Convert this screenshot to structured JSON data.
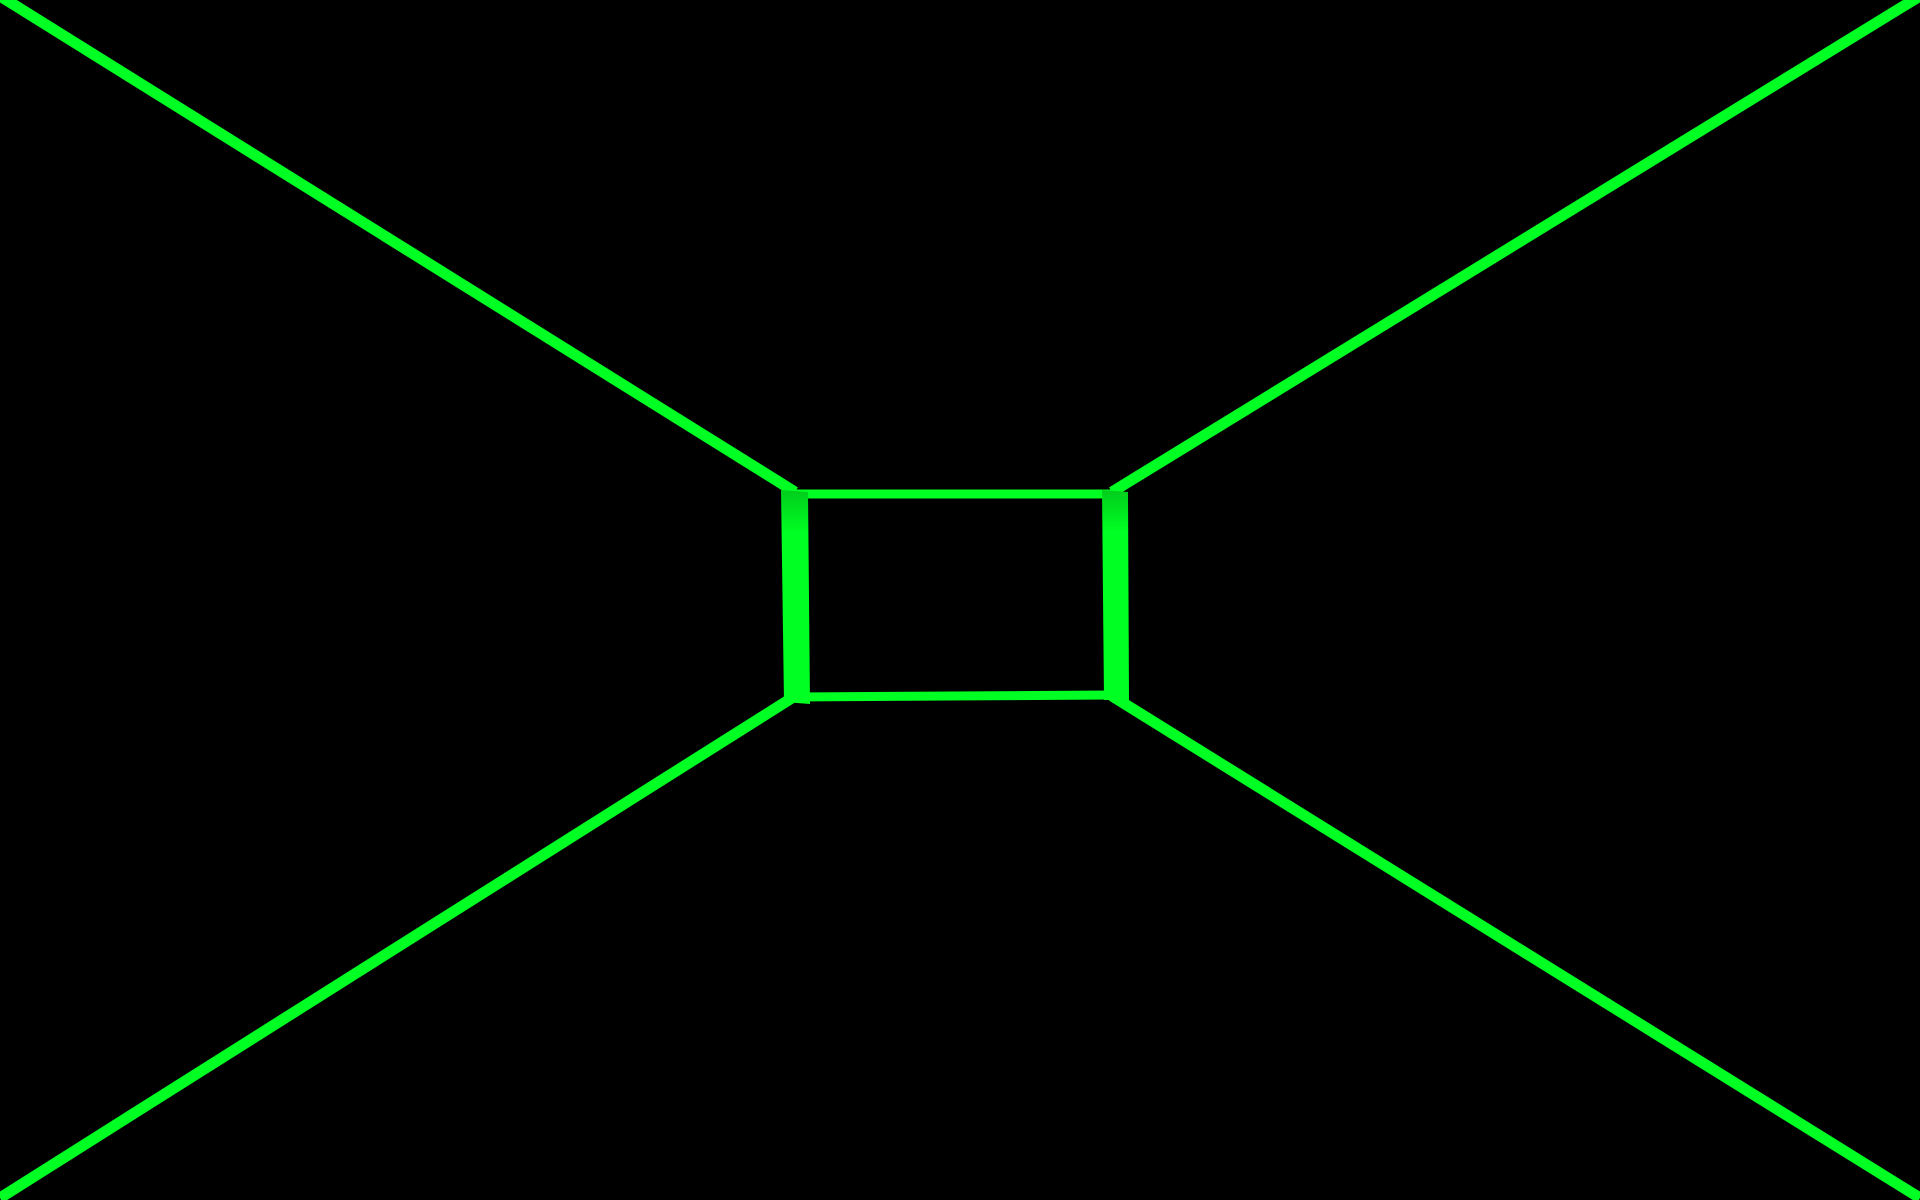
{
  "scene": {
    "type": "wireframe-corridor",
    "background_color": "#000000",
    "line_color": "#00ff22",
    "line_shadow_color": "#00cc1c"
  }
}
